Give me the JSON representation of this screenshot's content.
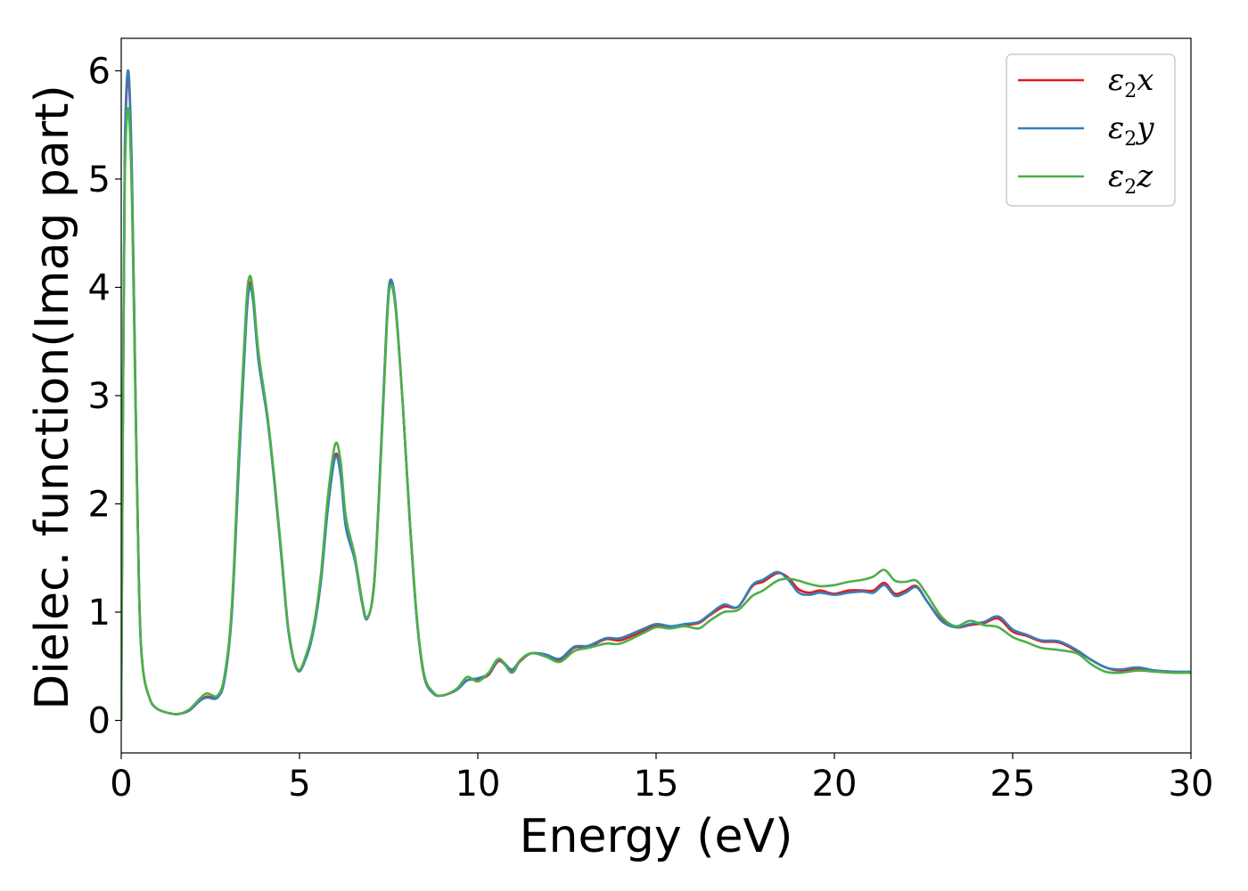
{
  "chart_data": {
    "type": "line",
    "title": "",
    "xlabel": "Energy (eV)",
    "ylabel": "Dielec. function(Imag part)",
    "xlim": [
      0,
      30
    ],
    "ylim": [
      -0.3,
      6.3
    ],
    "xticks": [
      "0",
      "5",
      "10",
      "15",
      "20",
      "25",
      "30"
    ],
    "yticks": [
      "0",
      "1",
      "2",
      "3",
      "4",
      "5",
      "6"
    ],
    "grid": false,
    "legend_position": "top-right",
    "series": [
      {
        "name": "ε2x",
        "legend_base": "ε",
        "legend_sub": "2",
        "legend_var": "x",
        "color": "#e41a1c",
        "points": [
          [
            0,
            0
          ],
          [
            0.05,
            3.0
          ],
          [
            0.1,
            5.2
          ],
          [
            0.2,
            5.95
          ],
          [
            0.3,
            5.0
          ],
          [
            0.4,
            3.0
          ],
          [
            0.5,
            1.2
          ],
          [
            0.6,
            0.5
          ],
          [
            0.8,
            0.2
          ],
          [
            1.0,
            0.11
          ],
          [
            1.3,
            0.07
          ],
          [
            1.6,
            0.06
          ],
          [
            1.9,
            0.09
          ],
          [
            2.2,
            0.18
          ],
          [
            2.4,
            0.22
          ],
          [
            2.7,
            0.22
          ],
          [
            2.9,
            0.4
          ],
          [
            3.1,
            1.0
          ],
          [
            3.3,
            2.4
          ],
          [
            3.5,
            3.7
          ],
          [
            3.6,
            4.04
          ],
          [
            3.7,
            3.9
          ],
          [
            3.85,
            3.35
          ],
          [
            4.1,
            2.8
          ],
          [
            4.3,
            2.2
          ],
          [
            4.5,
            1.5
          ],
          [
            4.7,
            0.8
          ],
          [
            4.95,
            0.46
          ],
          [
            5.2,
            0.6
          ],
          [
            5.4,
            0.85
          ],
          [
            5.6,
            1.3
          ],
          [
            5.8,
            2.0
          ],
          [
            6.0,
            2.45
          ],
          [
            6.15,
            2.3
          ],
          [
            6.3,
            1.8
          ],
          [
            6.55,
            1.5
          ],
          [
            6.75,
            1.1
          ],
          [
            6.9,
            0.94
          ],
          [
            7.1,
            1.3
          ],
          [
            7.3,
            2.6
          ],
          [
            7.45,
            3.7
          ],
          [
            7.55,
            4.05
          ],
          [
            7.7,
            3.8
          ],
          [
            7.9,
            2.9
          ],
          [
            8.1,
            1.8
          ],
          [
            8.3,
            0.9
          ],
          [
            8.5,
            0.4
          ],
          [
            8.75,
            0.25
          ],
          [
            9.0,
            0.23
          ],
          [
            9.4,
            0.28
          ],
          [
            9.7,
            0.37
          ],
          [
            10.0,
            0.38
          ],
          [
            10.3,
            0.42
          ],
          [
            10.6,
            0.55
          ],
          [
            10.95,
            0.46
          ],
          [
            11.2,
            0.55
          ],
          [
            11.5,
            0.62
          ],
          [
            11.9,
            0.6
          ],
          [
            12.3,
            0.56
          ],
          [
            12.7,
            0.67
          ],
          [
            13.1,
            0.68
          ],
          [
            13.6,
            0.75
          ],
          [
            14.0,
            0.74
          ],
          [
            14.6,
            0.82
          ],
          [
            15.0,
            0.88
          ],
          [
            15.4,
            0.86
          ],
          [
            15.8,
            0.88
          ],
          [
            16.2,
            0.9
          ],
          [
            16.5,
            0.97
          ],
          [
            16.9,
            1.05
          ],
          [
            17.3,
            1.05
          ],
          [
            17.7,
            1.24
          ],
          [
            18.0,
            1.28
          ],
          [
            18.4,
            1.36
          ],
          [
            18.7,
            1.32
          ],
          [
            19.0,
            1.21
          ],
          [
            19.3,
            1.18
          ],
          [
            19.6,
            1.2
          ],
          [
            20.0,
            1.17
          ],
          [
            20.4,
            1.2
          ],
          [
            20.8,
            1.2
          ],
          [
            21.1,
            1.2
          ],
          [
            21.4,
            1.27
          ],
          [
            21.7,
            1.17
          ],
          [
            22.0,
            1.2
          ],
          [
            22.3,
            1.24
          ],
          [
            22.6,
            1.1
          ],
          [
            23.0,
            0.93
          ],
          [
            23.4,
            0.86
          ],
          [
            23.8,
            0.88
          ],
          [
            24.2,
            0.9
          ],
          [
            24.6,
            0.94
          ],
          [
            25.0,
            0.82
          ],
          [
            25.4,
            0.78
          ],
          [
            25.8,
            0.73
          ],
          [
            26.3,
            0.72
          ],
          [
            26.8,
            0.64
          ],
          [
            27.2,
            0.56
          ],
          [
            27.6,
            0.49
          ],
          [
            28.0,
            0.46
          ],
          [
            28.5,
            0.48
          ],
          [
            29.0,
            0.46
          ],
          [
            29.5,
            0.45
          ],
          [
            30,
            0.44
          ]
        ]
      },
      {
        "name": "ε2y",
        "legend_base": "ε",
        "legend_sub": "2",
        "legend_var": "y",
        "color": "#377eb8",
        "points": [
          [
            0,
            0
          ],
          [
            0.05,
            3.0
          ],
          [
            0.1,
            5.3
          ],
          [
            0.2,
            6.0
          ],
          [
            0.3,
            5.05
          ],
          [
            0.4,
            3.0
          ],
          [
            0.5,
            1.2
          ],
          [
            0.6,
            0.5
          ],
          [
            0.8,
            0.2
          ],
          [
            1.0,
            0.11
          ],
          [
            1.3,
            0.07
          ],
          [
            1.6,
            0.06
          ],
          [
            1.9,
            0.09
          ],
          [
            2.2,
            0.18
          ],
          [
            2.4,
            0.21
          ],
          [
            2.7,
            0.21
          ],
          [
            2.9,
            0.38
          ],
          [
            3.1,
            0.98
          ],
          [
            3.3,
            2.35
          ],
          [
            3.5,
            3.65
          ],
          [
            3.6,
            4.0
          ],
          [
            3.7,
            3.87
          ],
          [
            3.85,
            3.32
          ],
          [
            4.1,
            2.78
          ],
          [
            4.3,
            2.18
          ],
          [
            4.5,
            1.48
          ],
          [
            4.7,
            0.8
          ],
          [
            4.95,
            0.46
          ],
          [
            5.2,
            0.59
          ],
          [
            5.4,
            0.84
          ],
          [
            5.6,
            1.28
          ],
          [
            5.8,
            1.97
          ],
          [
            6.0,
            2.43
          ],
          [
            6.15,
            2.27
          ],
          [
            6.3,
            1.78
          ],
          [
            6.55,
            1.48
          ],
          [
            6.75,
            1.09
          ],
          [
            6.9,
            0.94
          ],
          [
            7.1,
            1.3
          ],
          [
            7.3,
            2.62
          ],
          [
            7.45,
            3.72
          ],
          [
            7.55,
            4.07
          ],
          [
            7.7,
            3.82
          ],
          [
            7.9,
            2.9
          ],
          [
            8.1,
            1.8
          ],
          [
            8.3,
            0.9
          ],
          [
            8.5,
            0.4
          ],
          [
            8.75,
            0.25
          ],
          [
            9.0,
            0.23
          ],
          [
            9.4,
            0.28
          ],
          [
            9.7,
            0.37
          ],
          [
            10.0,
            0.39
          ],
          [
            10.3,
            0.43
          ],
          [
            10.6,
            0.56
          ],
          [
            10.95,
            0.47
          ],
          [
            11.2,
            0.56
          ],
          [
            11.5,
            0.62
          ],
          [
            11.9,
            0.61
          ],
          [
            12.3,
            0.57
          ],
          [
            12.7,
            0.68
          ],
          [
            13.1,
            0.69
          ],
          [
            13.6,
            0.76
          ],
          [
            14.0,
            0.76
          ],
          [
            14.6,
            0.84
          ],
          [
            15.0,
            0.89
          ],
          [
            15.4,
            0.87
          ],
          [
            15.8,
            0.89
          ],
          [
            16.2,
            0.91
          ],
          [
            16.5,
            0.98
          ],
          [
            16.9,
            1.07
          ],
          [
            17.3,
            1.05
          ],
          [
            17.7,
            1.25
          ],
          [
            18.0,
            1.3
          ],
          [
            18.4,
            1.37
          ],
          [
            18.7,
            1.3
          ],
          [
            19.0,
            1.18
          ],
          [
            19.3,
            1.16
          ],
          [
            19.6,
            1.18
          ],
          [
            20.0,
            1.16
          ],
          [
            20.4,
            1.18
          ],
          [
            20.8,
            1.19
          ],
          [
            21.1,
            1.18
          ],
          [
            21.4,
            1.25
          ],
          [
            21.7,
            1.15
          ],
          [
            22.0,
            1.18
          ],
          [
            22.3,
            1.23
          ],
          [
            22.6,
            1.1
          ],
          [
            23.0,
            0.92
          ],
          [
            23.4,
            0.86
          ],
          [
            23.8,
            0.89
          ],
          [
            24.2,
            0.91
          ],
          [
            24.6,
            0.96
          ],
          [
            25.0,
            0.84
          ],
          [
            25.4,
            0.79
          ],
          [
            25.8,
            0.74
          ],
          [
            26.3,
            0.73
          ],
          [
            26.8,
            0.65
          ],
          [
            27.2,
            0.56
          ],
          [
            27.6,
            0.49
          ],
          [
            28.0,
            0.47
          ],
          [
            28.5,
            0.49
          ],
          [
            29.0,
            0.46
          ],
          [
            29.5,
            0.45
          ],
          [
            30,
            0.45
          ]
        ]
      },
      {
        "name": "ε2z",
        "legend_base": "ε",
        "legend_sub": "2",
        "legend_var": "z",
        "color": "#4daf4a",
        "points": [
          [
            0,
            0
          ],
          [
            0.05,
            2.9
          ],
          [
            0.1,
            5.0
          ],
          [
            0.2,
            5.65
          ],
          [
            0.3,
            4.8
          ],
          [
            0.4,
            2.9
          ],
          [
            0.5,
            1.2
          ],
          [
            0.6,
            0.5
          ],
          [
            0.8,
            0.2
          ],
          [
            1.0,
            0.11
          ],
          [
            1.3,
            0.07
          ],
          [
            1.6,
            0.06
          ],
          [
            1.9,
            0.1
          ],
          [
            2.2,
            0.2
          ],
          [
            2.4,
            0.25
          ],
          [
            2.7,
            0.23
          ],
          [
            2.9,
            0.42
          ],
          [
            3.1,
            1.05
          ],
          [
            3.3,
            2.5
          ],
          [
            3.5,
            3.8
          ],
          [
            3.6,
            4.1
          ],
          [
            3.7,
            3.95
          ],
          [
            3.85,
            3.4
          ],
          [
            4.1,
            2.82
          ],
          [
            4.3,
            2.22
          ],
          [
            4.5,
            1.52
          ],
          [
            4.7,
            0.82
          ],
          [
            4.95,
            0.47
          ],
          [
            5.2,
            0.62
          ],
          [
            5.4,
            0.88
          ],
          [
            5.6,
            1.35
          ],
          [
            5.8,
            2.08
          ],
          [
            6.0,
            2.55
          ],
          [
            6.15,
            2.4
          ],
          [
            6.3,
            1.88
          ],
          [
            6.55,
            1.52
          ],
          [
            6.75,
            1.12
          ],
          [
            6.9,
            0.95
          ],
          [
            7.1,
            1.28
          ],
          [
            7.3,
            2.55
          ],
          [
            7.45,
            3.65
          ],
          [
            7.55,
            4.02
          ],
          [
            7.7,
            3.78
          ],
          [
            7.9,
            2.9
          ],
          [
            8.1,
            1.82
          ],
          [
            8.3,
            0.92
          ],
          [
            8.5,
            0.42
          ],
          [
            8.75,
            0.26
          ],
          [
            9.0,
            0.23
          ],
          [
            9.4,
            0.29
          ],
          [
            9.7,
            0.4
          ],
          [
            10.0,
            0.36
          ],
          [
            10.3,
            0.44
          ],
          [
            10.6,
            0.57
          ],
          [
            10.95,
            0.44
          ],
          [
            11.2,
            0.56
          ],
          [
            11.5,
            0.62
          ],
          [
            11.9,
            0.59
          ],
          [
            12.3,
            0.54
          ],
          [
            12.7,
            0.64
          ],
          [
            13.1,
            0.67
          ],
          [
            13.6,
            0.71
          ],
          [
            14.0,
            0.71
          ],
          [
            14.6,
            0.8
          ],
          [
            15.0,
            0.86
          ],
          [
            15.4,
            0.85
          ],
          [
            15.8,
            0.87
          ],
          [
            16.2,
            0.85
          ],
          [
            16.5,
            0.92
          ],
          [
            16.9,
            1.0
          ],
          [
            17.3,
            1.02
          ],
          [
            17.7,
            1.15
          ],
          [
            18.0,
            1.2
          ],
          [
            18.4,
            1.29
          ],
          [
            18.7,
            1.31
          ],
          [
            19.0,
            1.29
          ],
          [
            19.3,
            1.26
          ],
          [
            19.6,
            1.24
          ],
          [
            20.0,
            1.25
          ],
          [
            20.4,
            1.28
          ],
          [
            20.8,
            1.3
          ],
          [
            21.1,
            1.33
          ],
          [
            21.4,
            1.39
          ],
          [
            21.7,
            1.29
          ],
          [
            22.0,
            1.28
          ],
          [
            22.3,
            1.29
          ],
          [
            22.6,
            1.16
          ],
          [
            23.0,
            0.96
          ],
          [
            23.4,
            0.87
          ],
          [
            23.8,
            0.92
          ],
          [
            24.2,
            0.88
          ],
          [
            24.6,
            0.86
          ],
          [
            25.0,
            0.77
          ],
          [
            25.4,
            0.72
          ],
          [
            25.8,
            0.67
          ],
          [
            26.3,
            0.65
          ],
          [
            26.8,
            0.62
          ],
          [
            27.2,
            0.52
          ],
          [
            27.6,
            0.45
          ],
          [
            28.0,
            0.44
          ],
          [
            28.5,
            0.46
          ],
          [
            29.0,
            0.45
          ],
          [
            29.5,
            0.44
          ],
          [
            30,
            0.44
          ]
        ]
      }
    ]
  }
}
